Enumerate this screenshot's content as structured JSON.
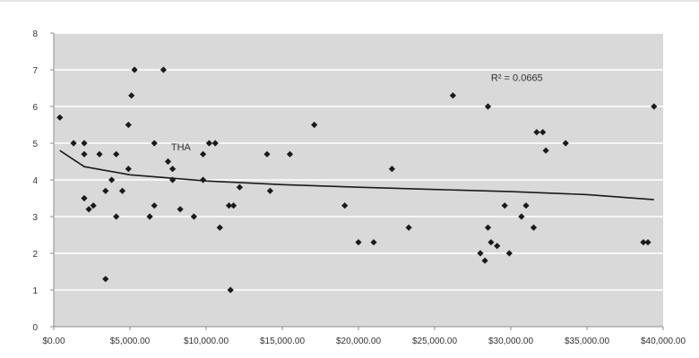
{
  "chart_data": {
    "type": "scatter",
    "title": "",
    "xlabel": "",
    "ylabel": "",
    "xlim": [
      0,
      40000
    ],
    "ylim": [
      0,
      8
    ],
    "x_ticks": [
      0,
      5000,
      10000,
      15000,
      20000,
      25000,
      30000,
      35000,
      40000
    ],
    "x_tick_labels": [
      "$0.00",
      "$5,000.00",
      "$10,000.00",
      "$15,000.00",
      "$20,000.00",
      "$25,000.00",
      "$30,000.00",
      "$35,000.00",
      "$40,000.00"
    ],
    "y_ticks": [
      0,
      1,
      2,
      3,
      4,
      5,
      6,
      7,
      8
    ],
    "y_tick_labels": [
      "0",
      "1",
      "2",
      "3",
      "4",
      "5",
      "6",
      "7",
      "8"
    ],
    "grid": true,
    "legend": "none",
    "colors": {
      "plot_background": "#d9d9d9",
      "gridline": "#ffffff",
      "marker": "#1a1a1a",
      "trendline": "#1a1a1a"
    },
    "series": [
      {
        "points": [
          {
            "x": 400,
            "y": 5.7
          },
          {
            "x": 1300,
            "y": 5.0
          },
          {
            "x": 2000,
            "y": 5.0
          },
          {
            "x": 2000,
            "y": 4.7
          },
          {
            "x": 2000,
            "y": 3.5
          },
          {
            "x": 2300,
            "y": 3.2
          },
          {
            "x": 2600,
            "y": 3.3
          },
          {
            "x": 3000,
            "y": 4.7
          },
          {
            "x": 3400,
            "y": 3.7
          },
          {
            "x": 3400,
            "y": 1.3
          },
          {
            "x": 3800,
            "y": 4.0
          },
          {
            "x": 4100,
            "y": 3.0
          },
          {
            "x": 4100,
            "y": 4.7
          },
          {
            "x": 4500,
            "y": 3.7
          },
          {
            "x": 4900,
            "y": 5.5
          },
          {
            "x": 4900,
            "y": 4.3
          },
          {
            "x": 5100,
            "y": 6.3
          },
          {
            "x": 5300,
            "y": 7.0
          },
          {
            "x": 6300,
            "y": 3.0
          },
          {
            "x": 6600,
            "y": 3.3
          },
          {
            "x": 6600,
            "y": 5.0
          },
          {
            "x": 7200,
            "y": 7.0
          },
          {
            "x": 7500,
            "y": 4.5
          },
          {
            "x": 7800,
            "y": 4.3
          },
          {
            "x": 7800,
            "y": 4.0
          },
          {
            "x": 8300,
            "y": 3.2
          },
          {
            "x": 9200,
            "y": 3.0
          },
          {
            "x": 9800,
            "y": 4.7
          },
          {
            "x": 9800,
            "y": 4.0
          },
          {
            "x": 10200,
            "y": 5.0
          },
          {
            "x": 10600,
            "y": 5.0
          },
          {
            "x": 10900,
            "y": 2.7
          },
          {
            "x": 11500,
            "y": 3.3
          },
          {
            "x": 11600,
            "y": 1.0
          },
          {
            "x": 11800,
            "y": 3.3
          },
          {
            "x": 12200,
            "y": 3.8
          },
          {
            "x": 14000,
            "y": 4.7
          },
          {
            "x": 14200,
            "y": 3.7
          },
          {
            "x": 15500,
            "y": 4.7
          },
          {
            "x": 17100,
            "y": 5.5
          },
          {
            "x": 19100,
            "y": 3.3
          },
          {
            "x": 20000,
            "y": 2.3
          },
          {
            "x": 21000,
            "y": 2.3
          },
          {
            "x": 22200,
            "y": 4.3
          },
          {
            "x": 23300,
            "y": 2.7
          },
          {
            "x": 26200,
            "y": 6.3
          },
          {
            "x": 28000,
            "y": 2.0
          },
          {
            "x": 28300,
            "y": 1.8
          },
          {
            "x": 28500,
            "y": 2.7
          },
          {
            "x": 28700,
            "y": 2.3
          },
          {
            "x": 29100,
            "y": 2.2
          },
          {
            "x": 28500,
            "y": 6.0
          },
          {
            "x": 29600,
            "y": 3.3
          },
          {
            "x": 29900,
            "y": 2.0
          },
          {
            "x": 30700,
            "y": 3.0
          },
          {
            "x": 31000,
            "y": 3.3
          },
          {
            "x": 31500,
            "y": 2.7
          },
          {
            "x": 31700,
            "y": 5.3
          },
          {
            "x": 32100,
            "y": 5.3
          },
          {
            "x": 32300,
            "y": 4.8
          },
          {
            "x": 33600,
            "y": 5.0
          },
          {
            "x": 38700,
            "y": 2.3
          },
          {
            "x": 39000,
            "y": 2.3
          },
          {
            "x": 39400,
            "y": 6.0
          }
        ]
      }
    ],
    "trendline": {
      "type": "logarithmic",
      "x": [
        400,
        2000,
        5000,
        10000,
        15000,
        20000,
        25000,
        30000,
        35000,
        39400
      ],
      "y": [
        4.8,
        4.36,
        4.14,
        3.97,
        3.87,
        3.8,
        3.74,
        3.68,
        3.6,
        3.46
      ]
    },
    "annotations": [
      {
        "text": "R² = 0.0665",
        "x": 28700,
        "y": 6.7
      },
      {
        "text": "THA",
        "x": 7700,
        "y": 4.8
      }
    ]
  }
}
